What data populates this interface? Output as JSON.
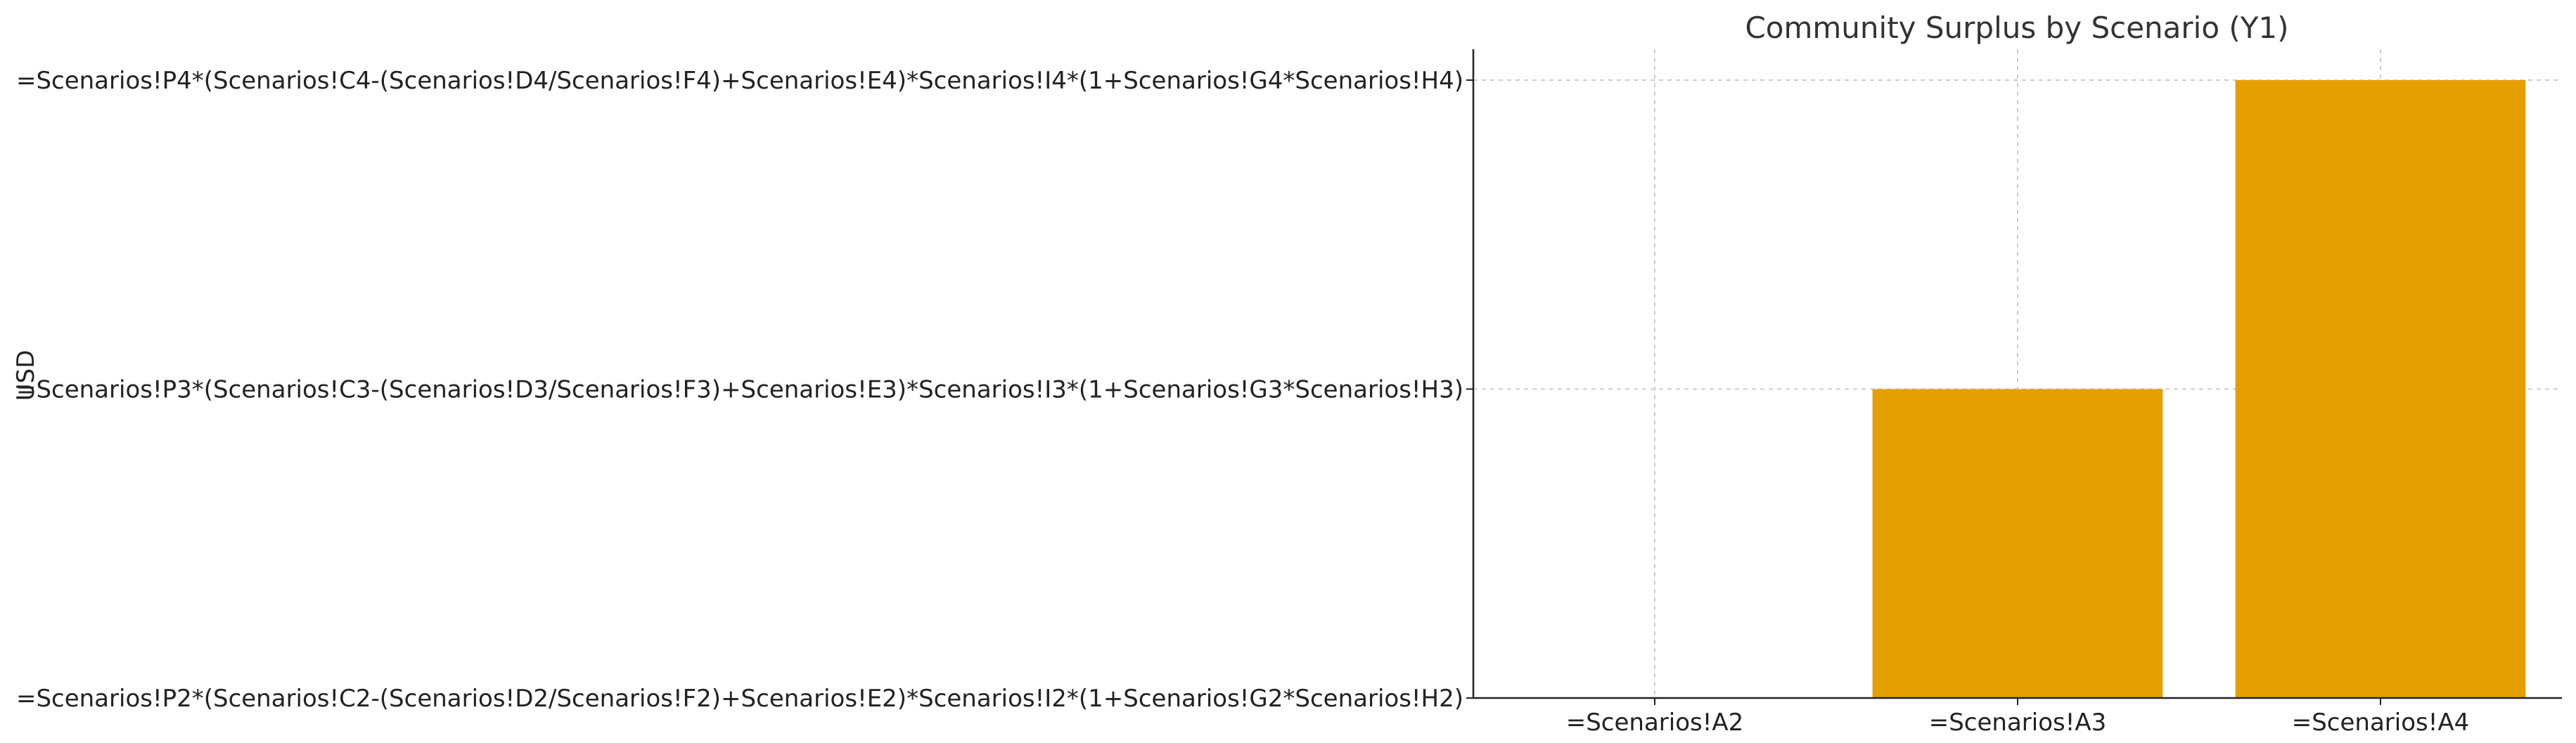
{
  "chart_data": {
    "type": "bar",
    "title": "Community Surplus by Scenario (Y1)",
    "xlabel": "",
    "ylabel": "USD",
    "categories": [
      "=Scenarios!A2",
      "=Scenarios!A3",
      "=Scenarios!A4"
    ],
    "y_tick_labels": [
      "=Scenarios!P2*(Scenarios!C2-(Scenarios!D2/Scenarios!F2)+Scenarios!E2)*Scenarios!I2*(1+Scenarios!G2*Scenarios!H2)",
      "=Scenarios!P3*(Scenarios!C3-(Scenarios!D3/Scenarios!F3)+Scenarios!E3)*Scenarios!I3*(1+Scenarios!G3*Scenarios!H3)",
      "=Scenarios!P4*(Scenarios!C4-(Scenarios!D4/Scenarios!F4)+Scenarios!E4)*Scenarios!I4*(1+Scenarios!G4*Scenarios!H4)"
    ],
    "values": [
      0,
      1,
      2
    ],
    "ylim": [
      0,
      2.1
    ],
    "bar_color": "#E69F00",
    "grid": true,
    "grid_style": "dashed",
    "legend": "none"
  }
}
